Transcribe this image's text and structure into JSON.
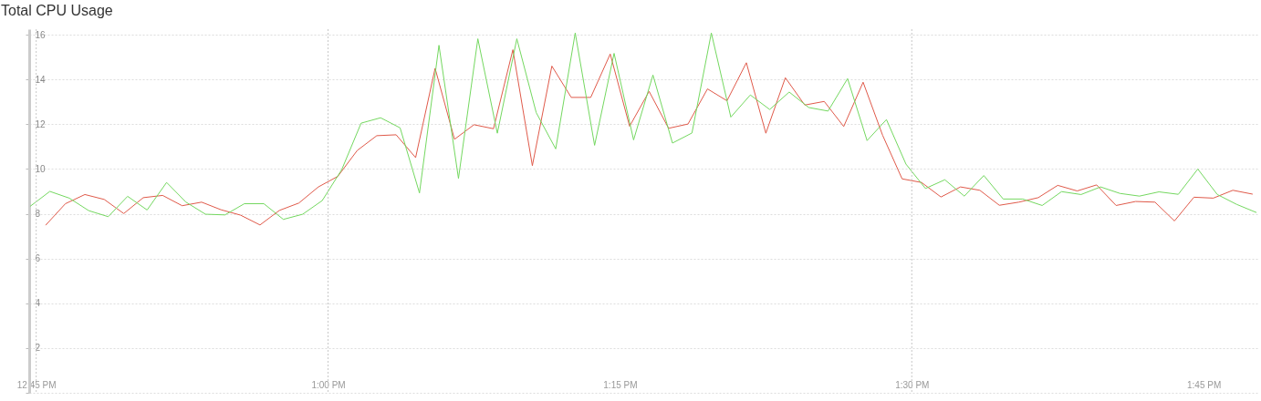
{
  "chart_data": {
    "type": "line",
    "title": "Total CPU Usage",
    "series": [
      {
        "color": "#e05a4a",
        "x": [
          12.7583,
          12.775,
          12.7917,
          12.8083,
          12.825,
          12.8417,
          12.8583,
          12.875,
          12.8917,
          12.9083,
          12.925,
          12.9417,
          12.9583,
          12.975,
          12.9917,
          13.0083,
          13.025,
          13.0417,
          13.0583,
          13.075,
          13.0917,
          13.1083,
          13.125,
          13.1417,
          13.1583,
          13.175,
          13.1917,
          13.2083,
          13.225,
          13.2417,
          13.2583,
          13.275,
          13.2917,
          13.3083,
          13.325,
          13.3417,
          13.3583,
          13.375,
          13.3917,
          13.4083,
          13.425,
          13.4417,
          13.4583,
          13.475,
          13.4917,
          13.5083,
          13.525,
          13.5417,
          13.5583,
          13.575,
          13.5917,
          13.6083,
          13.625,
          13.6417,
          13.6583,
          13.675,
          13.6917,
          13.7083,
          13.725,
          13.7417,
          13.7583,
          13.775,
          13.7917
        ],
        "values": [
          7.5,
          8.45,
          8.86,
          8.64,
          8.01,
          8.72,
          8.82,
          8.36,
          8.52,
          8.18,
          7.94,
          7.5,
          8.15,
          8.48,
          9.2,
          9.67,
          10.83,
          11.49,
          11.53,
          10.51,
          14.5,
          11.33,
          11.98,
          11.8,
          15.33,
          10.15,
          14.6,
          13.2,
          13.2,
          15.14,
          11.91,
          13.47,
          11.82,
          12.01,
          13.58,
          13.05,
          14.75,
          11.6,
          14.08,
          12.86,
          13.02,
          11.9,
          13.88,
          11.51,
          9.56,
          9.4,
          8.75,
          9.2,
          9.05,
          8.38,
          8.52,
          8.72,
          9.27,
          9.02,
          9.29,
          8.37,
          8.55,
          8.52,
          7.68,
          8.74,
          8.7,
          9.05,
          8.88
        ]
      },
      {
        "color": "#74d860",
        "x": [
          12.745,
          12.7617,
          12.7783,
          12.795,
          12.8117,
          12.8283,
          12.845,
          12.8617,
          12.8783,
          12.895,
          12.9117,
          12.9283,
          12.945,
          12.9617,
          12.9783,
          12.995,
          13.0117,
          13.0283,
          13.045,
          13.0617,
          13.0783,
          13.095,
          13.1117,
          13.1283,
          13.145,
          13.1617,
          13.1783,
          13.195,
          13.2117,
          13.2283,
          13.245,
          13.2617,
          13.2783,
          13.295,
          13.3117,
          13.3283,
          13.345,
          13.3617,
          13.3783,
          13.395,
          13.4117,
          13.4283,
          13.445,
          13.4617,
          13.4783,
          13.495,
          13.5117,
          13.5283,
          13.545,
          13.5617,
          13.5783,
          13.595,
          13.6117,
          13.6283,
          13.645,
          13.6617,
          13.6783,
          13.695,
          13.7117,
          13.7283,
          13.745,
          13.7617,
          13.7783,
          13.795
        ],
        "values": [
          8.34,
          9.0,
          8.7,
          8.14,
          7.87,
          8.78,
          8.17,
          9.4,
          8.52,
          7.98,
          7.95,
          8.45,
          8.45,
          7.75,
          7.98,
          8.59,
          9.97,
          12.05,
          12.29,
          11.84,
          8.93,
          15.53,
          9.58,
          15.82,
          11.6,
          15.82,
          12.52,
          10.9,
          16.08,
          11.06,
          15.17,
          11.3,
          14.2,
          11.16,
          11.61,
          16.08,
          12.32,
          13.31,
          12.66,
          13.44,
          12.75,
          12.59,
          14.04,
          11.27,
          12.21,
          10.22,
          9.13,
          9.52,
          8.79,
          9.71,
          8.66,
          8.66,
          8.37,
          8.99,
          8.86,
          9.2,
          8.91,
          8.79,
          8.98,
          8.87,
          10.0,
          8.86,
          8.42,
          8.06
        ]
      }
    ],
    "xlim": [
      12.744,
      13.796
    ],
    "xticks": [
      {
        "value": 12.75,
        "label": "12:45 PM"
      },
      {
        "value": 13,
        "label": "1:00 PM"
      },
      {
        "value": 13.25,
        "label": "1:15 PM"
      },
      {
        "value": 13.5,
        "label": "1:30 PM"
      },
      {
        "value": 13.75,
        "label": "1:45 PM"
      }
    ],
    "ylim": [
      0,
      16.25
    ],
    "yticks": [
      {
        "value": 0,
        "label": null
      },
      2,
      4,
      6,
      8,
      10,
      12,
      14,
      16
    ],
    "grid": "y",
    "ref_lines": [
      {
        "axis": "x",
        "value": 12.75,
        "color": "#c8c8c8",
        "line_style": "dotted"
      },
      {
        "axis": "x",
        "value": 13,
        "color": "#c8c8c8",
        "line_style": "dotted"
      },
      {
        "axis": "x",
        "value": 13.5,
        "color": "#c8c8c8",
        "line_style": "dotted"
      }
    ]
  }
}
